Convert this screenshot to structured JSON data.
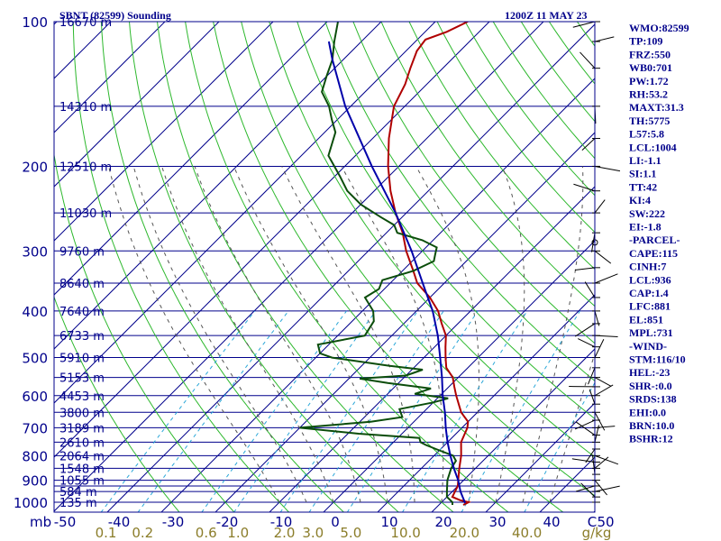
{
  "header": {
    "station": "SBNT (82599) Sounding",
    "time": "1200Z 11 MAY 23"
  },
  "indices": [
    "WMO:82599",
    "TP:109",
    "FRZ:550",
    "WB0:701",
    "PW:1.72",
    "RH:53.2",
    "MAXT:31.3",
    "TH:5775",
    "L57:5.8",
    "LCL:1004",
    "LI:-1.1",
    "SI:1.1",
    "TT:42",
    "KI:4",
    "SW:222",
    "EI:-1.8",
    "-PARCEL-",
    "CAPE:115",
    "CINH:7",
    "LCL:936",
    "CAP:1.4",
    "LFC:881",
    "EL:851",
    "MPL:731",
    "-WIND-",
    "STM:116/10",
    "HEL:-23",
    "SHR-:0.0",
    "SRDS:138",
    "EHI:0.0",
    "BRN:10.0",
    "BSHR:12"
  ],
  "colors": {
    "isobar": "#00008b",
    "isotherm": "#00008b",
    "dry_adiabat": "#2db82d",
    "moist_adiabat": "#555555",
    "mixing_ratio": "#2aa7d8",
    "temperature": "#b00000",
    "dewpoint": "#0b4d0b",
    "parcel": "#0000aa",
    "wind": "#000000"
  },
  "chart_data": {
    "type": "line",
    "title": "SBNT (82599) Sounding",
    "subtitle": "1200Z 11 MAY 23",
    "y_axis": {
      "scale": "log-pressure",
      "unit_label": "mb",
      "range_hpa": [
        1000,
        100
      ],
      "tick_labels": [
        "100",
        "200",
        "300",
        "400",
        "500",
        "600",
        "700",
        "800",
        "900",
        "1000"
      ]
    },
    "x_axis": {
      "scale": "skewed temperature",
      "unit_label": "C",
      "range_c": [
        -50,
        50
      ],
      "tick_labels": [
        "-50",
        "-40",
        "-30",
        "-20",
        "-10",
        "0",
        "10",
        "20",
        "30",
        "40",
        "50"
      ]
    },
    "mixing_ratio_axis": {
      "unit_label": "g/kg",
      "tick_labels": [
        "0.1",
        "0.2",
        "0.6",
        "1.0",
        "2.0",
        "3.0",
        "5.0",
        "10.0",
        "20.0",
        "40.0"
      ]
    },
    "height_labels": [
      {
        "p": 100,
        "label": "16670 m"
      },
      {
        "p": 150,
        "label": "14310 m"
      },
      {
        "p": 200,
        "label": "12510 m"
      },
      {
        "p": 250,
        "label": "11030 m"
      },
      {
        "p": 300,
        "label": "9760 m"
      },
      {
        "p": 350,
        "label": "8640 m"
      },
      {
        "p": 400,
        "label": "7640 m"
      },
      {
        "p": 450,
        "label": "6733 m"
      },
      {
        "p": 500,
        "label": "5910 m"
      },
      {
        "p": 550,
        "label": "5153 m"
      },
      {
        "p": 600,
        "label": "4453 m"
      },
      {
        "p": 650,
        "label": "3800 m"
      },
      {
        "p": 700,
        "label": "3189 m"
      },
      {
        "p": 750,
        "label": "2610 m"
      },
      {
        "p": 800,
        "label": "2064 m"
      },
      {
        "p": 850,
        "label": "1548 m"
      },
      {
        "p": 900,
        "label": "1055 m"
      },
      {
        "p": 950,
        "label": "584 m"
      },
      {
        "p": 1000,
        "label": "135 m"
      }
    ],
    "series": [
      {
        "key": "temperature",
        "points": [
          [
            1013,
            24.5
          ],
          [
            1000,
            25.0
          ],
          [
            990,
            23.0
          ],
          [
            975,
            21.0
          ],
          [
            950,
            20.5
          ],
          [
            925,
            20.0
          ],
          [
            900,
            19.0
          ],
          [
            850,
            17.0
          ],
          [
            800,
            15.0
          ],
          [
            750,
            12.5
          ],
          [
            700,
            11.0
          ],
          [
            680,
            10.0
          ],
          [
            650,
            7.0
          ],
          [
            600,
            3.0
          ],
          [
            575,
            1.0
          ],
          [
            550,
            -1.0
          ],
          [
            525,
            -4.0
          ],
          [
            500,
            -6.0
          ],
          [
            475,
            -8.0
          ],
          [
            450,
            -10.0
          ],
          [
            425,
            -13.0
          ],
          [
            400,
            -16.0
          ],
          [
            375,
            -20.0
          ],
          [
            350,
            -25.0
          ],
          [
            330,
            -28.0
          ],
          [
            300,
            -33.0
          ],
          [
            275,
            -37.0
          ],
          [
            250,
            -42.0
          ],
          [
            225,
            -47.0
          ],
          [
            200,
            -52.0
          ],
          [
            175,
            -57.0
          ],
          [
            150,
            -62.0
          ],
          [
            135,
            -64.0
          ],
          [
            125,
            -66.0
          ],
          [
            115,
            -68.0
          ],
          [
            109,
            -68.5
          ],
          [
            105,
            -66.0
          ],
          [
            100,
            -64.0
          ]
        ]
      },
      {
        "key": "dewpoint",
        "points": [
          [
            1013,
            22.5
          ],
          [
            1000,
            22.0
          ],
          [
            975,
            20.0
          ],
          [
            950,
            19.0
          ],
          [
            900,
            17.0
          ],
          [
            850,
            15.5
          ],
          [
            820,
            15.0
          ],
          [
            800,
            13.5
          ],
          [
            780,
            10.0
          ],
          [
            760,
            6.5
          ],
          [
            750,
            5.0
          ],
          [
            735,
            4.0
          ],
          [
            720,
            -8.0
          ],
          [
            700,
            -20.0
          ],
          [
            680,
            -8.0
          ],
          [
            665,
            -3.0
          ],
          [
            640,
            -5.0
          ],
          [
            620,
            0.0
          ],
          [
            608,
            2.0
          ],
          [
            595,
            -5.0
          ],
          [
            580,
            -3.0
          ],
          [
            565,
            -12.0
          ],
          [
            553,
            -18.0
          ],
          [
            545,
            -10.0
          ],
          [
            530,
            -8.0
          ],
          [
            520,
            -15.0
          ],
          [
            500,
            -27.0
          ],
          [
            490,
            -30.0
          ],
          [
            470,
            -32.0
          ],
          [
            450,
            -25.0
          ],
          [
            420,
            -26.0
          ],
          [
            400,
            -28.0
          ],
          [
            375,
            -32.0
          ],
          [
            360,
            -31.0
          ],
          [
            345,
            -32.0
          ],
          [
            330,
            -28.0
          ],
          [
            315,
            -26.0
          ],
          [
            305,
            -27.0
          ],
          [
            295,
            -28.0
          ],
          [
            285,
            -32.0
          ],
          [
            275,
            -38.0
          ],
          [
            265,
            -40.0
          ],
          [
            255,
            -44.0
          ],
          [
            240,
            -50.0
          ],
          [
            225,
            -55.0
          ],
          [
            210,
            -59.0
          ],
          [
            190,
            -65.0
          ],
          [
            170,
            -68.0
          ],
          [
            160,
            -71.0
          ],
          [
            150,
            -74.0
          ],
          [
            140,
            -78.0
          ],
          [
            130,
            -80.0
          ],
          [
            120,
            -82.0
          ],
          [
            110,
            -85.0
          ],
          [
            100,
            -88.0
          ]
        ]
      },
      {
        "key": "parcel",
        "points": [
          [
            1004,
            24.5
          ],
          [
            950,
            21.5
          ],
          [
            900,
            19.0
          ],
          [
            850,
            16.0
          ],
          [
            800,
            13.0
          ],
          [
            750,
            10.0
          ],
          [
            700,
            7.0
          ],
          [
            650,
            4.0
          ],
          [
            600,
            0.5
          ],
          [
            550,
            -3.0
          ],
          [
            500,
            -7.0
          ],
          [
            450,
            -11.5
          ],
          [
            400,
            -17.0
          ],
          [
            350,
            -24.0
          ],
          [
            300,
            -32.0
          ],
          [
            250,
            -42.0
          ],
          [
            200,
            -55.0
          ],
          [
            150,
            -71.0
          ],
          [
            120,
            -82.0
          ],
          [
            110,
            -86.0
          ]
        ]
      }
    ],
    "wind_barbs_note": "wind barbs plotted along right edge"
  }
}
